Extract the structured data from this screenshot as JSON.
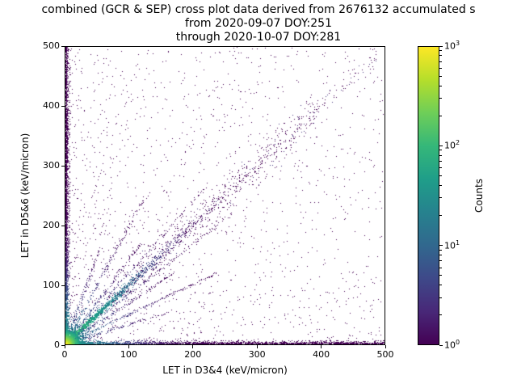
{
  "chart_data": {
    "type": "heatmap",
    "title": "combined (GCR & SEP) cross plot data derived from 2676132 accumulated s",
    "subtitle_lines": [
      "from 2020-09-07 DOY:251",
      "through 2020-10-07 DOY:281"
    ],
    "xlabel": "LET in D3&4 (keV/micron)",
    "ylabel": "LET in D5&6 (keV/micron)",
    "xlim": [
      0,
      500
    ],
    "ylim": [
      0,
      500
    ],
    "xticks": [
      0,
      100,
      200,
      300,
      400,
      500
    ],
    "yticks": [
      0,
      100,
      200,
      300,
      400,
      500
    ],
    "grid": false,
    "colorbar": {
      "label": "Counts",
      "scale": "log",
      "decades": 3,
      "tick_exponents": [
        0,
        1,
        2,
        3
      ],
      "colormap": "viridis",
      "stops": [
        "#440154",
        "#482878",
        "#3e4989",
        "#31688e",
        "#26828e",
        "#1f9e89",
        "#35b779",
        "#6ece58",
        "#b5de2b",
        "#fde725"
      ]
    },
    "description": "2D log-count histogram (viridis) of LET measured in detector pair D5&6 vs D3&4. Intense hotspot at the origin (counts near 10^3), a dense diagonal coincidence band y=x extending to ~350 keV/micron with a sparse continuation to ~480, dense low-count bands along both axes (x~0 and y~0), several radial streaks fanning out of the origin, and a sparse single-count purple background concentrated at low LET values.",
    "features": [
      {
        "kind": "background",
        "n": 1100,
        "pow": 1.6
      },
      {
        "kind": "uniform",
        "n": 230
      },
      {
        "kind": "left_scatter",
        "n": 320,
        "pow": 2.2
      },
      {
        "kind": "band_diag",
        "n": 620,
        "x0": 60,
        "x1": 385,
        "spread": 16
      },
      {
        "kind": "band_diag",
        "n": 80,
        "x0": 380,
        "x1": 490,
        "spread": 9
      },
      {
        "kind": "streak",
        "slope": 0.5,
        "n": 230,
        "len": 270,
        "amp": 25,
        "decay": 45
      },
      {
        "kind": "streak",
        "slope": 2.0,
        "n": 230,
        "len": 270,
        "amp": 25,
        "decay": 45
      },
      {
        "kind": "streak",
        "slope": 0.7,
        "n": 190,
        "len": 210,
        "amp": 20,
        "decay": 40
      },
      {
        "kind": "streak",
        "slope": 1.43,
        "n": 190,
        "len": 210,
        "amp": 20,
        "decay": 40
      },
      {
        "kind": "streak",
        "slope": 0.33,
        "n": 150,
        "len": 170,
        "amp": 15,
        "decay": 40
      },
      {
        "kind": "streak",
        "slope": 3.0,
        "n": 150,
        "len": 170,
        "amp": 15,
        "decay": 40
      },
      {
        "kind": "streak",
        "slope": 1.2,
        "n": 170,
        "len": 340,
        "amp": 15,
        "decay": 60
      },
      {
        "kind": "streak",
        "slope": 0.84,
        "n": 170,
        "len": 340,
        "amp": 15,
        "decay": 60
      },
      {
        "kind": "vband",
        "n": 2300,
        "mean": 1.5,
        "width": 6,
        "pow": 1.25,
        "amp": 70,
        "decay": 32
      },
      {
        "kind": "hband",
        "n": 1900,
        "mean": 1.5,
        "width": 6,
        "pow": 1.25,
        "amp": 70,
        "decay": 32
      },
      {
        "kind": "diagonal",
        "n": 1800,
        "mean": 62,
        "j0": 2,
        "jk": 0.02,
        "amp": 170,
        "decay": 34
      },
      {
        "kind": "origin",
        "n": 2900,
        "mean": 9,
        "peak": 1000,
        "core": 7
      }
    ]
  }
}
